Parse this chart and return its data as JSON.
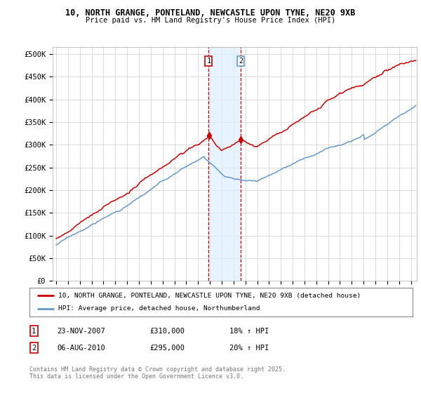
{
  "title1": "10, NORTH GRANGE, PONTELAND, NEWCASTLE UPON TYNE, NE20 9XB",
  "title2": "Price paid vs. HM Land Registry's House Price Index (HPI)",
  "ylabel_ticks": [
    "£0",
    "£50K",
    "£100K",
    "£150K",
    "£200K",
    "£250K",
    "£300K",
    "£350K",
    "£400K",
    "£450K",
    "£500K"
  ],
  "ytick_vals": [
    0,
    50000,
    100000,
    150000,
    200000,
    250000,
    300000,
    350000,
    400000,
    450000,
    500000
  ],
  "ylim": [
    0,
    515000
  ],
  "xlim_start": 1994.7,
  "xlim_end": 2025.5,
  "xtick_years": [
    1995,
    1996,
    1997,
    1998,
    1999,
    2000,
    2001,
    2002,
    2003,
    2004,
    2005,
    2006,
    2007,
    2008,
    2009,
    2010,
    2011,
    2012,
    2013,
    2014,
    2015,
    2016,
    2017,
    2018,
    2019,
    2020,
    2021,
    2022,
    2023,
    2024,
    2025
  ],
  "red_color": "#cc0000",
  "blue_color": "#6699cc",
  "vline1_x": 2007.9,
  "vline2_x": 2010.6,
  "shade_color": "#ddeeff",
  "transaction1": {
    "label": "1",
    "date": "23-NOV-2007",
    "price": "£310,000",
    "hpi": "18% ↑ HPI",
    "x": 2007.9
  },
  "transaction2": {
    "label": "2",
    "date": "06-AUG-2010",
    "price": "£295,000",
    "hpi": "20% ↑ HPI",
    "x": 2010.6
  },
  "legend_red": "10, NORTH GRANGE, PONTELAND, NEWCASTLE UPON TYNE, NE20 9XB (detached house)",
  "legend_blue": "HPI: Average price, detached house, Northumberland",
  "footnote": "Contains HM Land Registry data © Crown copyright and database right 2025.\nThis data is licensed under the Open Government Licence v3.0.",
  "background_color": "#ffffff",
  "grid_color": "#cccccc"
}
